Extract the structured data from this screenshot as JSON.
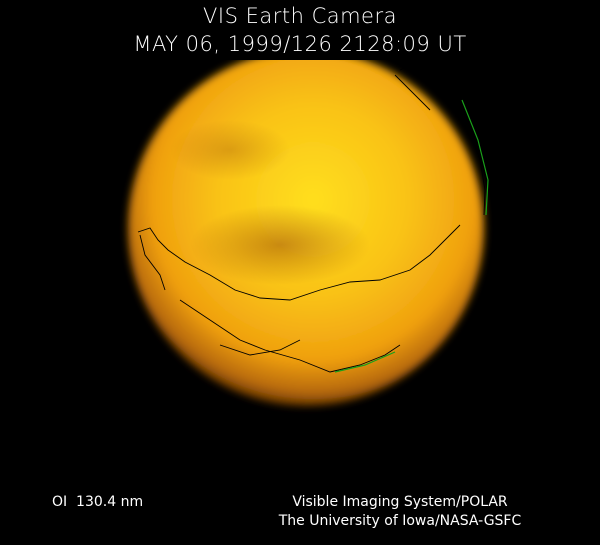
{
  "header": {
    "title": "VIS Earth Camera",
    "timestamp": "MAY 06, 1999/126 2128:09 UT"
  },
  "image": {
    "subject": "earth-disk-far-ultraviolet",
    "colors": {
      "core": "#ffe21a",
      "mid": "#f0a010",
      "edge": "#8a4a08",
      "coastline": "#000000",
      "terminator": "#1aa01a"
    }
  },
  "footer": {
    "wavelength": "OI  130.4 nm",
    "credit_line1": "Visible Imaging System/POLAR",
    "credit_line2": "The University of Iowa/NASA-GSFC"
  }
}
